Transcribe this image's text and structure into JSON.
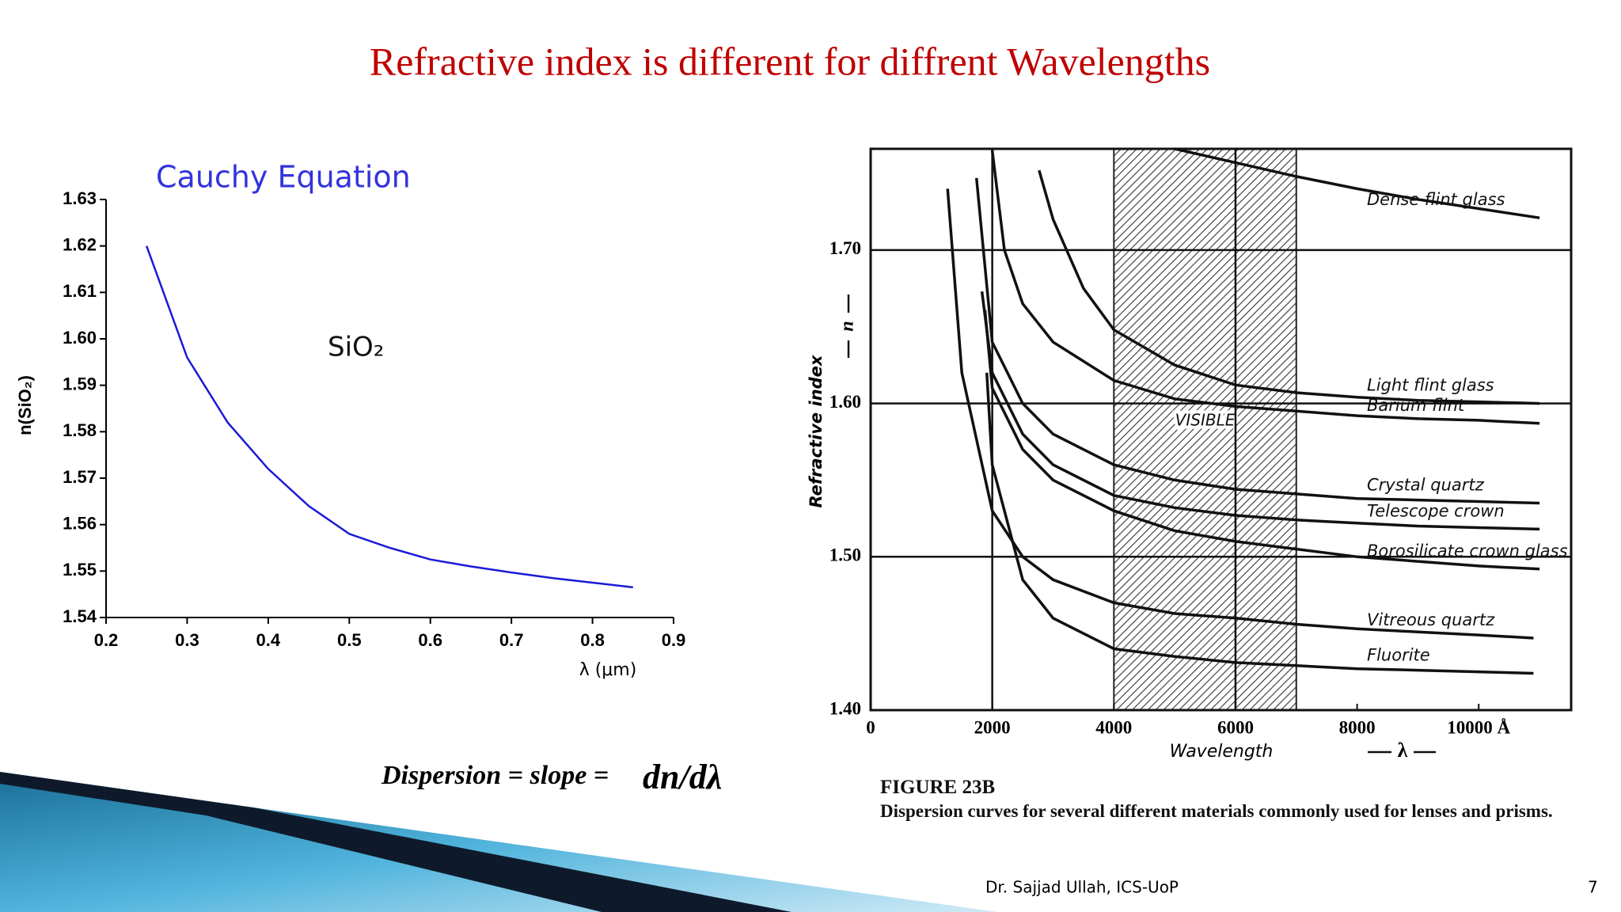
{
  "title": "Refractive index is different for diffrent Wavelengths",
  "chart_data": [
    {
      "type": "line",
      "title": "Cauchy Equation",
      "annotation": "SiO₂",
      "xlabel": "λ (μm)",
      "ylabel": "n(SiO₂)",
      "x": [
        0.25,
        0.3,
        0.35,
        0.4,
        0.45,
        0.5,
        0.55,
        0.6,
        0.65,
        0.7,
        0.75,
        0.8,
        0.85
      ],
      "series": [
        {
          "name": "SiO₂",
          "color": "#1a1ad6",
          "values": [
            1.62,
            1.596,
            1.582,
            1.572,
            1.564,
            1.558,
            1.555,
            1.5525,
            1.551,
            1.5497,
            1.5485,
            1.5475,
            1.5465
          ]
        }
      ],
      "xlim": [
        0.2,
        0.9
      ],
      "xticks": [
        0.2,
        0.3,
        0.4,
        0.5,
        0.6,
        0.7,
        0.8,
        0.9
      ],
      "ylim": [
        1.54,
        1.63
      ],
      "yticks": [
        1.54,
        1.55,
        1.56,
        1.57,
        1.58,
        1.59,
        {
          "value": 1.6,
          "label": "1.60"
        },
        1.61,
        1.62,
        1.63
      ],
      "grid": false,
      "frame": false
    },
    {
      "type": "line",
      "xlabel": "Wavelength",
      "xsymbol": "λ",
      "ylabel": "Refractive index",
      "ysymbol": "n",
      "bands": [
        {
          "label": "VISIBLE",
          "range": [
            4000,
            7000
          ]
        }
      ],
      "series": [
        {
          "name": "Dense flint glass",
          "color": "#111111",
          "x": [
            5000,
            6000,
            7000,
            8000,
            9000,
            10000,
            11000
          ],
          "values": [
            1.766,
            1.757,
            1.748,
            1.74,
            1.733,
            1.727,
            1.721
          ]
        },
        {
          "name": "Light flint glass",
          "color": "#111111",
          "x": [
            2770,
            3000,
            3500,
            4000,
            5000,
            6000,
            7000,
            8000,
            9000,
            10000,
            11000
          ],
          "values": [
            1.752,
            1.72,
            1.675,
            1.648,
            1.625,
            1.612,
            1.607,
            1.604,
            1.602,
            1.601,
            1.6
          ]
        },
        {
          "name": "Barium flint",
          "color": "#111111",
          "x": [
            2000,
            2200,
            2500,
            3000,
            4000,
            5000,
            6000,
            7000,
            8000,
            9000,
            10000,
            11000
          ],
          "values": [
            1.765,
            1.7,
            1.665,
            1.64,
            1.615,
            1.603,
            1.598,
            1.595,
            1.592,
            1.59,
            1.589,
            1.587
          ]
        },
        {
          "name": "Crystal quartz",
          "color": "#111111",
          "x": [
            1740,
            2000,
            2500,
            3000,
            4000,
            5000,
            6000,
            7000,
            8000,
            9000,
            10000,
            11000
          ],
          "values": [
            1.747,
            1.64,
            1.6,
            1.58,
            1.56,
            1.55,
            1.544,
            1.541,
            1.538,
            1.537,
            1.536,
            1.535
          ]
        },
        {
          "name": "Telescope crown",
          "color": "#111111",
          "x": [
            1830,
            2000,
            2500,
            3000,
            4000,
            5000,
            6000,
            7000,
            8000,
            9000,
            10000,
            11000
          ],
          "values": [
            1.673,
            1.62,
            1.58,
            1.56,
            1.54,
            1.532,
            1.527,
            1.524,
            1.522,
            1.52,
            1.519,
            1.518
          ]
        },
        {
          "name": "Borosilicate crown glass",
          "color": "#111111",
          "x": [
            1880,
            2000,
            2500,
            3000,
            4000,
            5000,
            6000,
            7000,
            8000,
            9000,
            10000,
            11000
          ],
          "values": [
            1.661,
            1.61,
            1.57,
            1.55,
            1.53,
            1.517,
            1.51,
            1.505,
            1.5,
            1.497,
            1.494,
            1.492
          ]
        },
        {
          "name": "Vitreous quartz",
          "color": "#111111",
          "x": [
            1265,
            1500,
            2000,
            2500,
            3000,
            4000,
            5000,
            6000,
            7000,
            8000,
            9000,
            10000,
            10900
          ],
          "values": [
            1.74,
            1.62,
            1.53,
            1.5,
            1.485,
            1.47,
            1.463,
            1.46,
            1.456,
            1.453,
            1.451,
            1.449,
            1.447
          ]
        },
        {
          "name": "Fluorite",
          "color": "#111111",
          "x": [
            1910,
            2000,
            2500,
            3000,
            4000,
            5000,
            6000,
            7000,
            8000,
            9000,
            10000,
            10900
          ],
          "values": [
            1.62,
            1.56,
            1.485,
            1.46,
            1.44,
            1.435,
            1.431,
            1.429,
            1.427,
            1.426,
            1.425,
            1.424
          ]
        }
      ],
      "xlim": [
        0,
        11520
      ],
      "xticks": [
        0,
        2000,
        4000,
        6000,
        8000,
        {
          "value": 10000,
          "label": "10000 Å"
        }
      ],
      "ylim": [
        1.4,
        1.766
      ],
      "yticks": [
        {
          "value": 1.4,
          "label": "1.40"
        },
        {
          "value": 1.5,
          "label": "1.50"
        },
        {
          "value": 1.6,
          "label": "1.60"
        },
        {
          "value": 1.7,
          "label": "1.70"
        }
      ],
      "grid": true,
      "xgrid": [
        2000,
        6000
      ],
      "frame": true
    }
  ],
  "formula": {
    "text": "Dispersion = slope =",
    "expression": "dn/dλ"
  },
  "figure": {
    "label": "FIGURE 23B",
    "caption": "Dispersion curves for several different materials commonly used for lenses and prisms."
  },
  "footer": {
    "author": "Dr. Sajjad Ullah, ICS-UoP",
    "page": 7
  }
}
